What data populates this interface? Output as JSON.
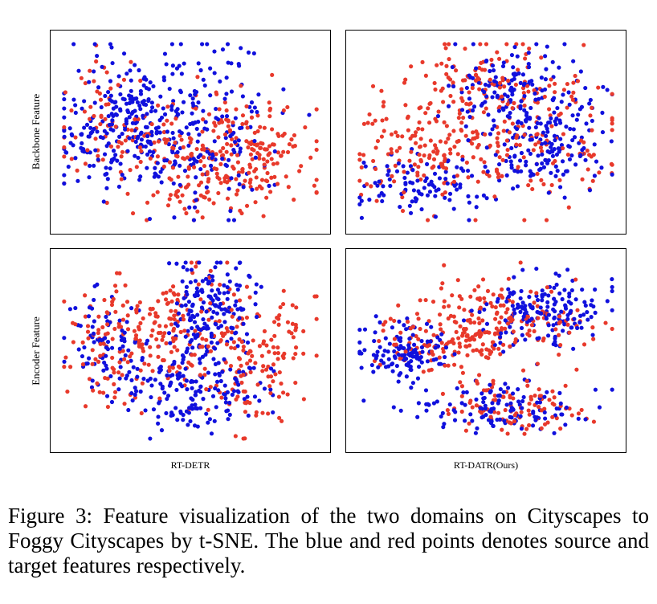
{
  "figure": {
    "row_labels": [
      "Backbone Feature",
      "Encoder Feature"
    ],
    "col_labels": [
      "RT-DETR",
      "RT-DATR(Ours)"
    ]
  },
  "colors": {
    "source": "#1010dd",
    "target": "#e8392b"
  },
  "legend_semantics": {
    "blue": "source features",
    "red": "target features"
  },
  "caption": "Figure 3: Feature visualization of the two domains on Cityscapes to Foggy Cityscapes by t-SNE. The blue and red points denotes source and target features respectively.",
  "chart_data": [
    {
      "type": "scatter",
      "row": "Backbone Feature",
      "column": "RT-DETR",
      "xlim": [
        0,
        1
      ],
      "ylim": [
        0,
        1
      ],
      "grid": false,
      "ticks": false,
      "series": [
        {
          "color": "blue",
          "count": 420,
          "seed": 11,
          "clusters": [
            {
              "cx": 0.24,
              "cy": 0.57,
              "sx": 0.13,
              "sy": 0.19,
              "w": 0.55
            },
            {
              "cx": 0.53,
              "cy": 0.55,
              "sx": 0.15,
              "sy": 0.22,
              "w": 0.45
            }
          ]
        },
        {
          "color": "red",
          "count": 360,
          "seed": 12,
          "clusters": [
            {
              "cx": 0.7,
              "cy": 0.37,
              "sx": 0.14,
              "sy": 0.15,
              "w": 0.55
            },
            {
              "cx": 0.47,
              "cy": 0.35,
              "sx": 0.12,
              "sy": 0.16,
              "w": 0.25
            },
            {
              "cx": 0.17,
              "cy": 0.55,
              "sx": 0.1,
              "sy": 0.18,
              "w": 0.2
            }
          ]
        }
      ]
    },
    {
      "type": "scatter",
      "row": "Backbone Feature",
      "column": "RT-DATR(Ours)",
      "xlim": [
        0,
        1
      ],
      "ylim": [
        0,
        1
      ],
      "grid": false,
      "ticks": false,
      "series": [
        {
          "color": "blue",
          "count": 400,
          "seed": 21,
          "clusters": [
            {
              "cx": 0.6,
              "cy": 0.74,
              "sx": 0.12,
              "sy": 0.12,
              "w": 0.35
            },
            {
              "cx": 0.74,
              "cy": 0.45,
              "sx": 0.11,
              "sy": 0.13,
              "w": 0.4
            },
            {
              "cx": 0.28,
              "cy": 0.22,
              "sx": 0.15,
              "sy": 0.1,
              "w": 0.25
            }
          ]
        },
        {
          "color": "red",
          "count": 380,
          "seed": 22,
          "clusters": [
            {
              "cx": 0.26,
              "cy": 0.43,
              "sx": 0.15,
              "sy": 0.16,
              "w": 0.4
            },
            {
              "cx": 0.72,
              "cy": 0.48,
              "sx": 0.14,
              "sy": 0.17,
              "w": 0.35
            },
            {
              "cx": 0.5,
              "cy": 0.78,
              "sx": 0.15,
              "sy": 0.1,
              "w": 0.25
            }
          ]
        }
      ]
    },
    {
      "type": "scatter",
      "row": "Encoder Feature",
      "column": "RT-DETR",
      "xlim": [
        0,
        1
      ],
      "ylim": [
        0,
        1
      ],
      "grid": false,
      "ticks": false,
      "series": [
        {
          "color": "blue",
          "count": 420,
          "seed": 31,
          "clusters": [
            {
              "cx": 0.58,
              "cy": 0.73,
              "sx": 0.08,
              "sy": 0.13,
              "w": 0.35
            },
            {
              "cx": 0.5,
              "cy": 0.32,
              "sx": 0.14,
              "sy": 0.12,
              "w": 0.45
            },
            {
              "cx": 0.17,
              "cy": 0.53,
              "sx": 0.08,
              "sy": 0.11,
              "w": 0.2
            }
          ]
        },
        {
          "color": "red",
          "count": 380,
          "seed": 32,
          "clusters": [
            {
              "cx": 0.72,
              "cy": 0.48,
              "sx": 0.14,
              "sy": 0.18,
              "w": 0.45
            },
            {
              "cx": 0.24,
              "cy": 0.52,
              "sx": 0.11,
              "sy": 0.15,
              "w": 0.35
            },
            {
              "cx": 0.42,
              "cy": 0.7,
              "sx": 0.12,
              "sy": 0.12,
              "w": 0.2
            }
          ]
        }
      ]
    },
    {
      "type": "scatter",
      "row": "Encoder Feature",
      "column": "RT-DATR(Ours)",
      "xlim": [
        0,
        1
      ],
      "ylim": [
        0,
        1
      ],
      "grid": false,
      "ticks": false,
      "series": [
        {
          "color": "blue",
          "count": 420,
          "seed": 41,
          "clusters": [
            {
              "cx": 0.18,
              "cy": 0.5,
              "sx": 0.09,
              "sy": 0.08,
              "w": 0.35
            },
            {
              "cx": 0.7,
              "cy": 0.7,
              "sx": 0.12,
              "sy": 0.09,
              "w": 0.4
            },
            {
              "cx": 0.55,
              "cy": 0.2,
              "sx": 0.16,
              "sy": 0.07,
              "w": 0.25
            }
          ]
        },
        {
          "color": "red",
          "count": 360,
          "seed": 42,
          "clusters": [
            {
              "cx": 0.35,
              "cy": 0.58,
              "sx": 0.14,
              "sy": 0.11,
              "w": 0.4
            },
            {
              "cx": 0.6,
              "cy": 0.66,
              "sx": 0.16,
              "sy": 0.1,
              "w": 0.35
            },
            {
              "cx": 0.62,
              "cy": 0.2,
              "sx": 0.13,
              "sy": 0.07,
              "w": 0.25
            }
          ]
        }
      ]
    }
  ]
}
